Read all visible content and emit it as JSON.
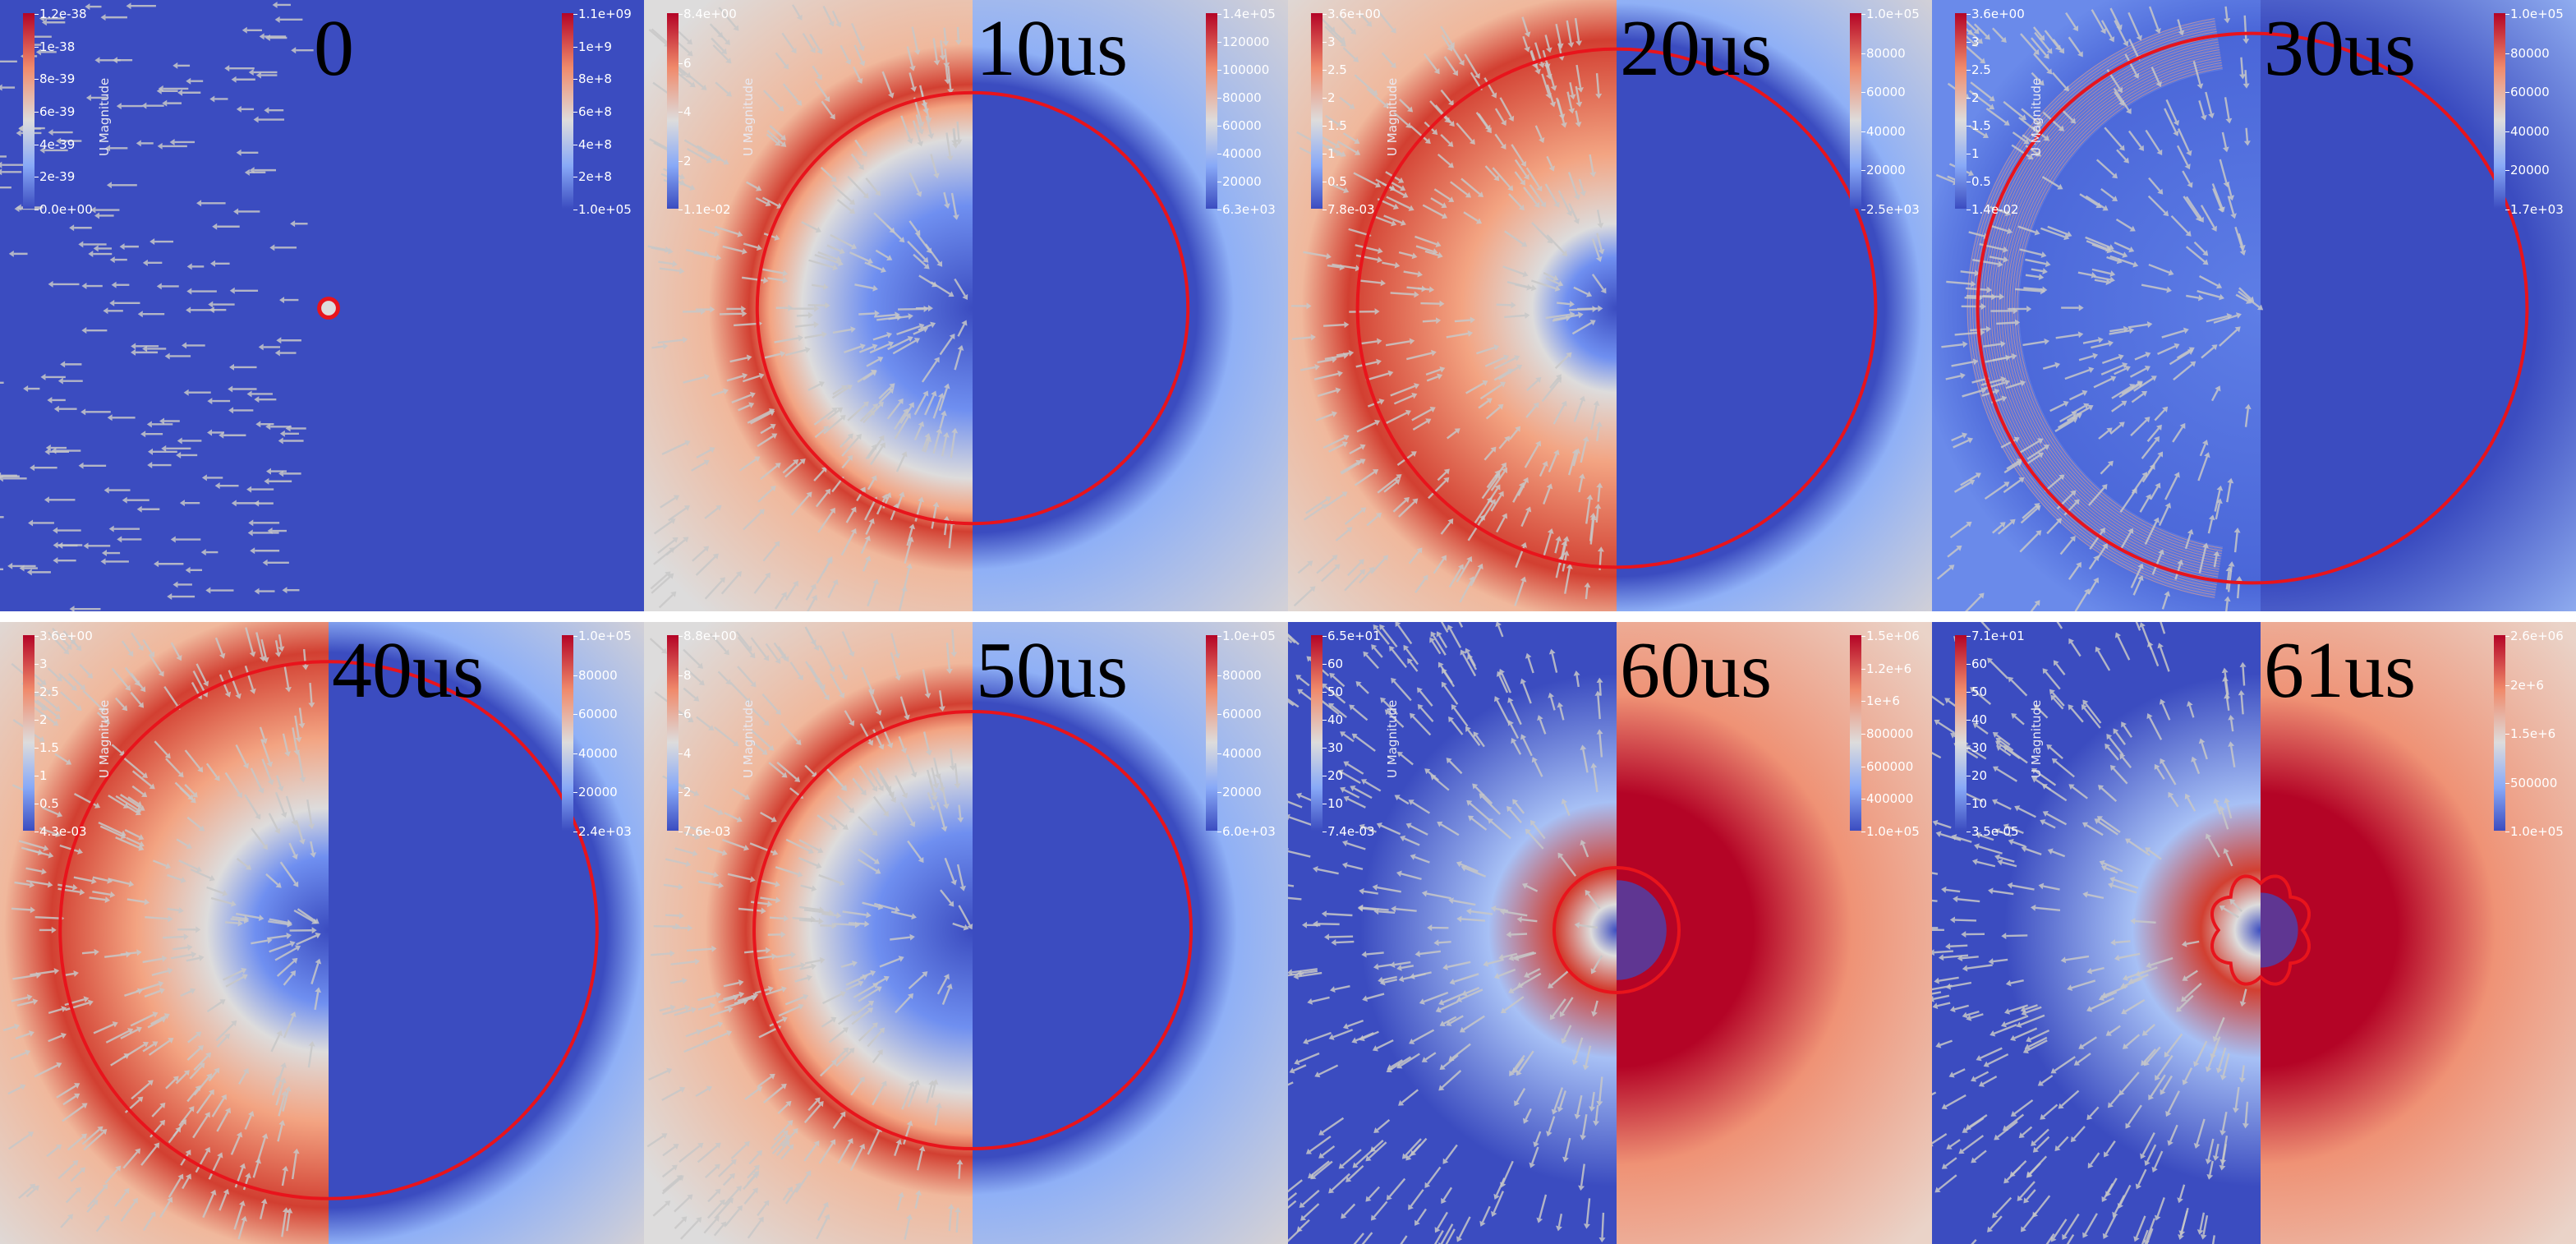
{
  "panels": [
    {
      "time": "0",
      "left_colorbar": {
        "title": "U Magnitude",
        "max": "1.2e-38",
        "ticks": [
          "1e-38",
          "8e-39",
          "6e-39",
          "4e-39",
          "2e-39"
        ],
        "min": "0.0e+00"
      },
      "right_colorbar": {
        "max": "1.1e+09",
        "ticks": [
          "1e+9",
          "8e+8",
          "6e+8",
          "4e+8",
          "2e+8"
        ],
        "min": "1.0e+05"
      },
      "bubble_radius_fraction": 0.03,
      "field_extent_fraction": 0.02,
      "inner_low_fraction": 0.0,
      "background": "uniform-blue",
      "bubble_shape": "circle"
    },
    {
      "time": "10us",
      "left_colorbar": {
        "title": "U Magnitude",
        "max": "8.4e+00",
        "ticks": [
          "6",
          "4",
          "2"
        ],
        "min": "1.1e-02"
      },
      "right_colorbar": {
        "max": "1.4e+05",
        "ticks": [
          "120000",
          "100000",
          "80000",
          "60000",
          "40000",
          "20000"
        ],
        "min": "6.3e+03"
      },
      "bubble_radius_fraction": 0.69,
      "field_extent_fraction": 1.3,
      "inner_low_fraction": 0.42,
      "background": "diffuse",
      "bubble_shape": "circle"
    },
    {
      "time": "20us",
      "left_colorbar": {
        "title": "U Magnitude",
        "max": "3.6e+00",
        "ticks": [
          "3",
          "2.5",
          "2",
          "1.5",
          "1",
          "0.5"
        ],
        "min": "7.8e-03"
      },
      "right_colorbar": {
        "max": "1.0e+05",
        "ticks": [
          "80000",
          "60000",
          "40000",
          "20000"
        ],
        "min": "2.5e+03"
      },
      "bubble_radius_fraction": 0.83,
      "field_extent_fraction": 1.5,
      "inner_low_fraction": 0.18,
      "background": "diffuse",
      "bubble_shape": "circle"
    },
    {
      "time": "30us",
      "left_colorbar": {
        "title": "U Magnitude",
        "max": "3.6e+00",
        "ticks": [
          "3",
          "2.5",
          "2",
          "1.5",
          "1",
          "0.5"
        ],
        "min": "1.4e-02"
      },
      "right_colorbar": {
        "max": "1.0e+05",
        "ticks": [
          "80000",
          "60000",
          "40000",
          "20000"
        ],
        "min": "1.7e+03"
      },
      "bubble_radius_fraction": 0.88,
      "field_extent_fraction": 0.0,
      "inner_low_fraction": 0.0,
      "background": "rippled",
      "bubble_shape": "circle"
    },
    {
      "time": "40us",
      "left_colorbar": {
        "title": "U Magnitude",
        "max": "3.6e+00",
        "ticks": [
          "3",
          "2.5",
          "2",
          "1.5",
          "1",
          "0.5"
        ],
        "min": "4.3e-03"
      },
      "right_colorbar": {
        "max": "1.0e+05",
        "ticks": [
          "80000",
          "60000",
          "40000",
          "20000"
        ],
        "min": "2.4e+03"
      },
      "bubble_radius_fraction": 0.86,
      "field_extent_fraction": 1.5,
      "inner_low_fraction": 0.26,
      "background": "diffuse",
      "bubble_shape": "circle"
    },
    {
      "time": "50us",
      "left_colorbar": {
        "title": "U Magnitude",
        "max": "8.8e+00",
        "ticks": [
          "8",
          "6",
          "4",
          "2"
        ],
        "min": "7.6e-03"
      },
      "right_colorbar": {
        "max": "1.0e+05",
        "ticks": [
          "80000",
          "60000",
          "40000",
          "20000"
        ],
        "min": "6.0e+03"
      },
      "bubble_radius_fraction": 0.7,
      "field_extent_fraction": 1.3,
      "inner_low_fraction": 0.4,
      "background": "diffuse",
      "bubble_shape": "circle"
    },
    {
      "time": "60us",
      "left_colorbar": {
        "title": "U Magnitude",
        "max": "6.5e+01",
        "ticks": [
          "60",
          "50",
          "40",
          "30",
          "20",
          "10"
        ],
        "min": "7.4e-03"
      },
      "right_colorbar": {
        "max": "1.5e+06",
        "ticks": [
          "1.2e+6",
          "1e+6",
          "800000",
          "600000",
          "400000"
        ],
        "min": "1.0e+05"
      },
      "bubble_radius_fraction": 0.2,
      "field_extent_fraction": 0.7,
      "inner_low_fraction": 0.1,
      "background": "collapse",
      "bubble_shape": "circle"
    },
    {
      "time": "61us",
      "left_colorbar": {
        "title": "U Magnitude",
        "max": "7.1e+01",
        "ticks": [
          "60",
          "50",
          "40",
          "30",
          "20",
          "10"
        ],
        "min": "3.5e-05"
      },
      "right_colorbar": {
        "max": "2.6e+06",
        "ticks": [
          "2e+6",
          "1.5e+6",
          "500000"
        ],
        "min": "1.0e+05"
      },
      "bubble_radius_fraction": 0.15,
      "field_extent_fraction": 0.6,
      "inner_low_fraction": 0.05,
      "background": "collapse",
      "bubble_shape": "lobed"
    }
  ],
  "colors": {
    "low": "#3b4cc0",
    "mid": "#dddcdc",
    "high": "#d23f31",
    "peak": "#b40426",
    "interface": "#e8141c",
    "arrows": "#c8c8c8",
    "label": "#000000"
  }
}
